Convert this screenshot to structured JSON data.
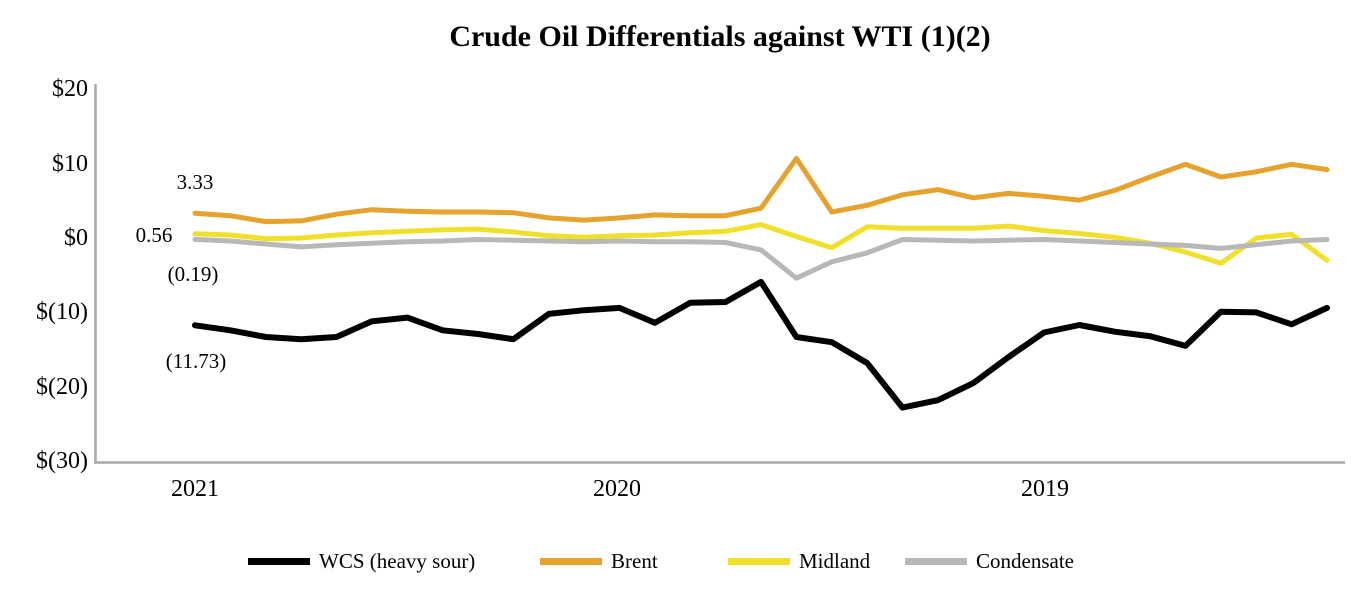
{
  "title": "Crude Oil Differentials against WTI (1)(2)",
  "chart_data": {
    "type": "line",
    "title": "Crude Oil Differentials against WTI (1)(2)",
    "x_axis": {
      "labels": [
        "2021",
        "2020",
        "2019"
      ],
      "direction": "time descends left to right, monthly points"
    },
    "y_axis": {
      "tick_labels": [
        "$20",
        "$10",
        "$0",
        "$(10)",
        "$(20)",
        "$(30)"
      ],
      "tick_values": [
        20,
        10,
        0,
        -10,
        -20,
        -30
      ],
      "range": [
        -30,
        20
      ],
      "grid": "off"
    },
    "point_annotations": [
      {
        "text": "3.33",
        "series": "Brent",
        "position": "first point"
      },
      {
        "text": "0.56",
        "series": "Midland",
        "position": "first point"
      },
      {
        "text": "(0.19)",
        "series": "Condensate",
        "position": "first point"
      },
      {
        "text": "(11.73)",
        "series": "WCS (heavy sour)",
        "position": "first point"
      }
    ],
    "legend": {
      "position": "bottom"
    },
    "series": [
      {
        "name": "WCS (heavy sour)",
        "color": "#000000",
        "values": [
          -11.73,
          -12.4,
          -13.3,
          -13.6,
          -13.3,
          -11.2,
          -10.7,
          -12.4,
          -12.9,
          -13.6,
          -10.2,
          -9.7,
          -9.4,
          -11.4,
          -8.7,
          -8.6,
          -5.9,
          -13.3,
          -14.0,
          -16.8,
          -22.8,
          -21.8,
          -19.5,
          -16.0,
          -12.7,
          -11.7,
          -12.6,
          -13.2,
          -14.5,
          -9.9,
          -10.0,
          -11.6,
          -9.4
        ]
      },
      {
        "name": "Brent",
        "color": "#E5A32E",
        "values": [
          3.33,
          3.0,
          2.2,
          2.3,
          3.2,
          3.8,
          3.6,
          3.5,
          3.5,
          3.4,
          2.7,
          2.4,
          2.7,
          3.1,
          3.0,
          3.0,
          4.0,
          10.7,
          3.5,
          4.4,
          5.8,
          6.5,
          5.4,
          6.0,
          5.6,
          5.1,
          6.4,
          8.2,
          9.9,
          8.2,
          8.9,
          9.9,
          9.2
        ]
      },
      {
        "name": "Midland",
        "color": "#F0E02C",
        "values": [
          0.56,
          0.4,
          -0.1,
          0.0,
          0.4,
          0.7,
          0.9,
          1.1,
          1.2,
          0.8,
          0.3,
          0.1,
          0.3,
          0.4,
          0.7,
          0.9,
          1.8,
          0.2,
          -1.3,
          1.5,
          1.3,
          1.3,
          1.3,
          1.6,
          1.0,
          0.6,
          0.1,
          -0.7,
          -1.9,
          -3.4,
          0.0,
          0.5,
          -3.0
        ]
      },
      {
        "name": "Condensate",
        "color": "#B8B8B8",
        "values": [
          -0.19,
          -0.4,
          -0.8,
          -1.2,
          -0.9,
          -0.7,
          -0.5,
          -0.4,
          -0.2,
          -0.3,
          -0.4,
          -0.5,
          -0.4,
          -0.5,
          -0.5,
          -0.6,
          -1.6,
          -5.4,
          -3.2,
          -2.0,
          -0.2,
          -0.3,
          -0.4,
          -0.3,
          -0.2,
          -0.4,
          -0.6,
          -0.8,
          -1.0,
          -1.4,
          -0.9,
          -0.4,
          -0.2
        ]
      }
    ]
  }
}
